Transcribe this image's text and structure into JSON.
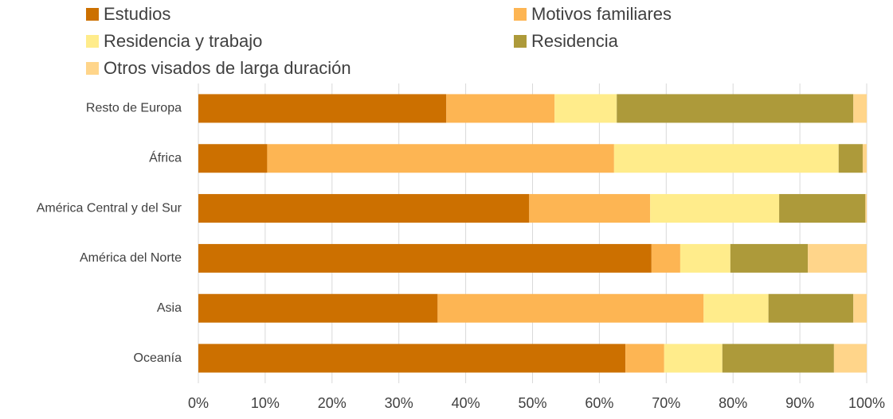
{
  "chart_data": {
    "type": "stacked-barh",
    "categories": [
      "Resto de Europa",
      "África",
      "América Central y del Sur",
      "América del Norte",
      "Asia",
      "Oceanía"
    ],
    "series": [
      {
        "name": "Estudios",
        "color": "#cc7000",
        "values": [
          37.1,
          10.3,
          49.5,
          67.8,
          35.8,
          63.9
        ]
      },
      {
        "name": "Motivos familiares",
        "color": "#fdb553",
        "values": [
          16.2,
          51.9,
          18.1,
          4.3,
          39.8,
          5.8
        ]
      },
      {
        "name": "Residencia y trabajo",
        "color": "#ffec8b",
        "values": [
          9.3,
          33.6,
          19.3,
          7.5,
          9.7,
          8.7
        ]
      },
      {
        "name": "Residencia",
        "color": "#ad9a3a",
        "values": [
          35.4,
          3.6,
          12.9,
          11.6,
          12.7,
          16.7
        ]
      },
      {
        "name": "Otros visados de larga duración",
        "color": "#ffd58a",
        "values": [
          2.0,
          0.6,
          0.2,
          8.8,
          2.0,
          4.9
        ]
      }
    ],
    "xlim": [
      0,
      100
    ],
    "xticks": [
      {
        "value": 0,
        "label": "0%"
      },
      {
        "value": 10,
        "label": "10%"
      },
      {
        "value": 20,
        "label": "20%"
      },
      {
        "value": 30,
        "label": "30%"
      },
      {
        "value": 40,
        "label": "40%"
      },
      {
        "value": 50,
        "label": "50%"
      },
      {
        "value": 60,
        "label": "60%"
      },
      {
        "value": 70,
        "label": "70%"
      },
      {
        "value": 80,
        "label": "80%"
      },
      {
        "value": 90,
        "label": "90%"
      },
      {
        "value": 100,
        "label": "100%"
      }
    ],
    "grid": true,
    "legend": "top"
  }
}
